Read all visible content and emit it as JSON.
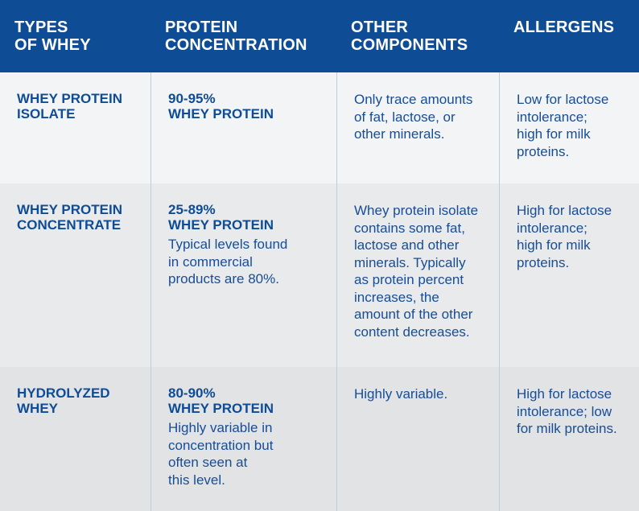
{
  "table": {
    "header": [
      [
        "TYPES",
        "OF WHEY"
      ],
      [
        "PROTEIN",
        "CONCENTRATION"
      ],
      [
        "OTHER",
        "COMPONENTS"
      ],
      [
        "ALLERGENS"
      ]
    ],
    "rows": [
      {
        "type": [
          "WHEY PROTEIN",
          "ISOLATE"
        ],
        "concentration": [
          "90-95%",
          "WHEY PROTEIN"
        ],
        "other": [
          "Only trace amounts",
          "of fat, lactose, or",
          "other minerals."
        ],
        "allergens": [
          "Low for lactose",
          "intolerance;",
          "high for milk",
          "proteins."
        ]
      },
      {
        "type": [
          "WHEY PROTEIN",
          "CONCENTRATE"
        ],
        "concentration": [
          "25-89%",
          "WHEY PROTEIN"
        ],
        "note": [
          "Typical levels found",
          "in commercial",
          "products are 80%."
        ],
        "other": [
          "Whey protein isolate",
          "contains some fat,",
          "lactose and other",
          "minerals. Typically",
          "as protein percent",
          "increases, the",
          "amount of the other",
          "content decreases."
        ],
        "allergens": [
          "High for lactose",
          "intolerance;",
          "high for milk",
          "proteins."
        ]
      },
      {
        "type": [
          "HYDROLYZED",
          "WHEY"
        ],
        "concentration": [
          "80-90%",
          "WHEY PROTEIN"
        ],
        "note": [
          "Highly variable in",
          "concentration but",
          "often seen at",
          "this level."
        ],
        "other": [
          "Highly variable."
        ],
        "allergens": [
          "High for lactose",
          "intolerance; low",
          "for milk proteins."
        ]
      }
    ]
  }
}
